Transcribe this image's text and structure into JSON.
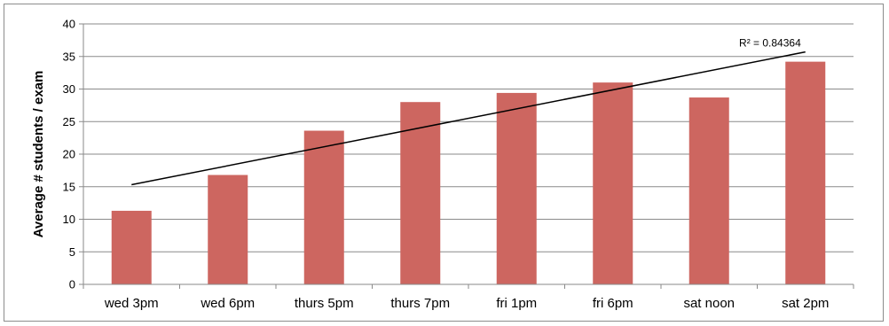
{
  "chart_data": {
    "type": "bar",
    "title": "",
    "xlabel": "",
    "ylabel": "Average # students / exam",
    "categories": [
      "wed 3pm",
      "wed 6pm",
      "thurs 5pm",
      "thurs 7pm",
      "fri 1pm",
      "fri 6pm",
      "sat noon",
      "sat 2pm"
    ],
    "series": [
      {
        "values": [
          11.3,
          16.8,
          23.6,
          28.0,
          29.4,
          31.0,
          28.7,
          34.2
        ],
        "color": "#cd6660"
      }
    ],
    "ylim": [
      0,
      40
    ],
    "yticks": [
      0,
      5,
      10,
      15,
      20,
      25,
      30,
      35,
      40
    ],
    "grid": true,
    "legend": "none",
    "trendline": {
      "type": "linear",
      "start": 15.3,
      "end": 35.7,
      "color": "#000000",
      "r2_label": "R² = 0.84364"
    }
  }
}
